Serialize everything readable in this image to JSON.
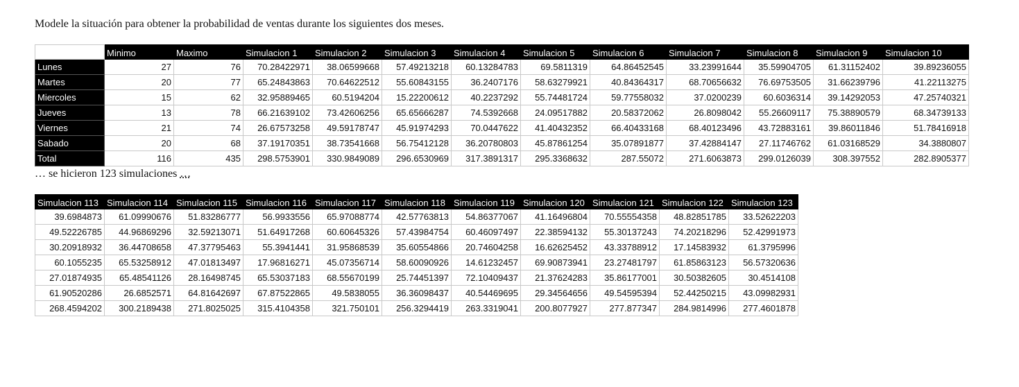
{
  "intro_text": "Modele la situación para obtener la probabilidad de ventas durante los siguientes dos meses.",
  "note": {
    "text": "… se hicieron 123 simulaciones ",
    "dots": "…"
  },
  "table1": {
    "headers": [
      "",
      "Minimo",
      "Maximo",
      "Simulacion 1",
      "Simulacion 2",
      "Simulacion 3",
      "Simulacion 4",
      "Simulacion 5",
      "Simulacion 6",
      "Simulacion 7",
      "Simulacion 8",
      "Simulacion 9",
      "Simulacion 10"
    ],
    "rows": [
      {
        "label": "Lunes",
        "cells": [
          "27",
          "76",
          "70.28422971",
          "38.06599668",
          "57.49213218",
          "60.13284783",
          "69.5811319",
          "64.86452545",
          "33.23991644",
          "35.59904705",
          "61.31152402",
          "39.89236055"
        ]
      },
      {
        "label": "Martes",
        "cells": [
          "20",
          "77",
          "65.24843863",
          "70.64622512",
          "55.60843155",
          "36.2407176",
          "58.63279921",
          "40.84364317",
          "68.70656632",
          "76.69753505",
          "31.66239796",
          "41.22113275"
        ]
      },
      {
        "label": "Miercoles",
        "cells": [
          "15",
          "62",
          "32.95889465",
          "60.5194204",
          "15.22200612",
          "40.2237292",
          "55.74481724",
          "59.77558032",
          "37.0200239",
          "60.6036314",
          "39.14292053",
          "47.25740321"
        ]
      },
      {
        "label": "Jueves",
        "cells": [
          "13",
          "78",
          "66.21639102",
          "73.42606256",
          "65.65666287",
          "74.5392668",
          "24.09517882",
          "20.58372062",
          "26.8098042",
          "55.26609117",
          "75.38890579",
          "68.34739133"
        ]
      },
      {
        "label": "Viernes",
        "cells": [
          "21",
          "74",
          "26.67573258",
          "49.59178747",
          "45.91974293",
          "70.0447622",
          "41.40432352",
          "66.40433168",
          "68.40123496",
          "43.72883161",
          "39.86011846",
          "51.78416918"
        ]
      },
      {
        "label": "Sabado",
        "cells": [
          "20",
          "68",
          "37.19170351",
          "38.73541668",
          "56.75412128",
          "36.20780803",
          "45.87861254",
          "35.07891877",
          "37.42884147",
          "27.11746762",
          "61.03168529",
          "34.3880807"
        ]
      },
      {
        "label": "Total",
        "cells": [
          "116",
          "435",
          "298.5753901",
          "330.9849089",
          "296.6530969",
          "317.3891317",
          "295.3368632",
          "287.55072",
          "271.6063873",
          "299.0126039",
          "308.397552",
          "282.8905377"
        ]
      }
    ]
  },
  "table2": {
    "headers": [
      "Simulacion 113",
      "Simulacion 114",
      "Simulacion 115",
      "Simulacion 116",
      "Simulacion 117",
      "Simulacion 118",
      "Simulacion 119",
      "Simulacion 120",
      "Simulacion 121",
      "Simulacion 122",
      "Simulacion 123"
    ],
    "rows": [
      [
        "39.6984873",
        "61.09990676",
        "51.83286777",
        "56.9933556",
        "65.97088774",
        "42.57763813",
        "54.86377067",
        "41.16496804",
        "70.55554358",
        "48.82851785",
        "33.52622203"
      ],
      [
        "49.52226785",
        "44.96869296",
        "32.59213071",
        "51.64917268",
        "60.60645326",
        "57.43984754",
        "60.46097497",
        "22.38594132",
        "55.30137243",
        "74.20218296",
        "52.42991973"
      ],
      [
        "30.20918932",
        "36.44708658",
        "47.37795463",
        "55.3941441",
        "31.95868539",
        "35.60554866",
        "20.74604258",
        "16.62625452",
        "43.33788912",
        "17.14583932",
        "61.3795996"
      ],
      [
        "60.1055235",
        "65.53258912",
        "47.01813497",
        "17.96816271",
        "45.07356714",
        "58.60090926",
        "14.61232457",
        "69.90873941",
        "23.27481797",
        "61.85863123",
        "56.57320636"
      ],
      [
        "27.01874935",
        "65.48541126",
        "28.16498745",
        "65.53037183",
        "68.55670199",
        "25.74451397",
        "72.10409437",
        "21.37624283",
        "35.86177001",
        "30.50382605",
        "30.4514108"
      ],
      [
        "61.90520286",
        "26.6852571",
        "64.81642697",
        "67.87522865",
        "49.5838055",
        "36.36098437",
        "40.54469695",
        "29.34564656",
        "49.54595394",
        "52.44250215",
        "43.09982931"
      ],
      [
        "268.4594202",
        "300.2189438",
        "271.8025025",
        "315.4104358",
        "321.750101",
        "256.3294419",
        "263.3319041",
        "200.8077927",
        "277.877347",
        "284.9814996",
        "277.4601878"
      ]
    ]
  }
}
